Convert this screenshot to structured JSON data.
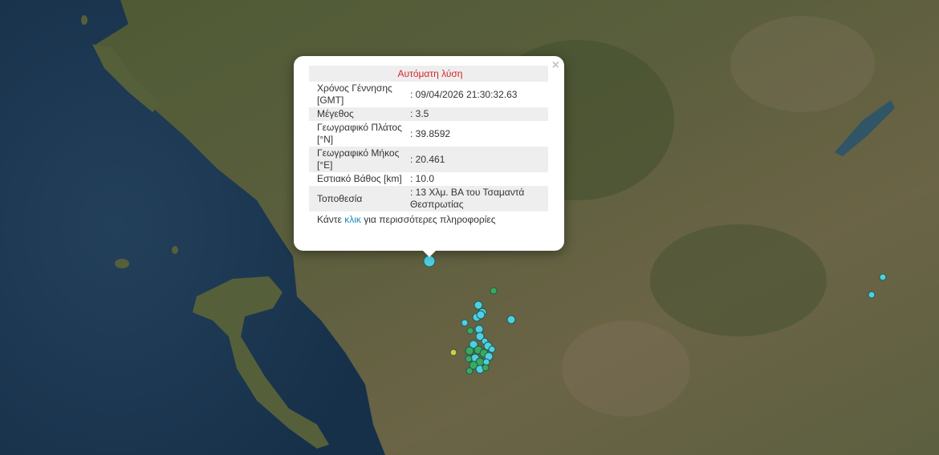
{
  "popup": {
    "title": "Αυτόματη λύση",
    "close_label": "×",
    "rows": [
      {
        "label": "Χρόνος Γέννησης [GMT]",
        "value": ": 09/04/2026 21:30:32.63"
      },
      {
        "label": "Μέγεθος",
        "value": ": 3.5"
      },
      {
        "label": "Γεωγραφικό Πλάτος [°N]",
        "value": ": 39.8592"
      },
      {
        "label": "Γεωγραφικό Μήκος [°E]",
        "value": ": 20.461"
      },
      {
        "label": "Εστιακό Βάθος [km]",
        "value": ": 10.0"
      },
      {
        "label": "Τοποθεσία",
        "value": ": 13 Χλμ. ΒΑ του Τσαμαντά Θεσπρωτίας"
      }
    ],
    "more_prefix": "Κάντε",
    "more_link": "κλικ",
    "more_suffix": "για περισσότερες πληροφορίες"
  },
  "colors": {
    "sea": "#1d3850",
    "land": "#4f5a36",
    "marker_recent": "#4fcfe0",
    "marker_day": "#3aaa5c",
    "marker_older": "#e0c43a",
    "title_red": "#d3262b",
    "link": "#1a8db6"
  }
}
